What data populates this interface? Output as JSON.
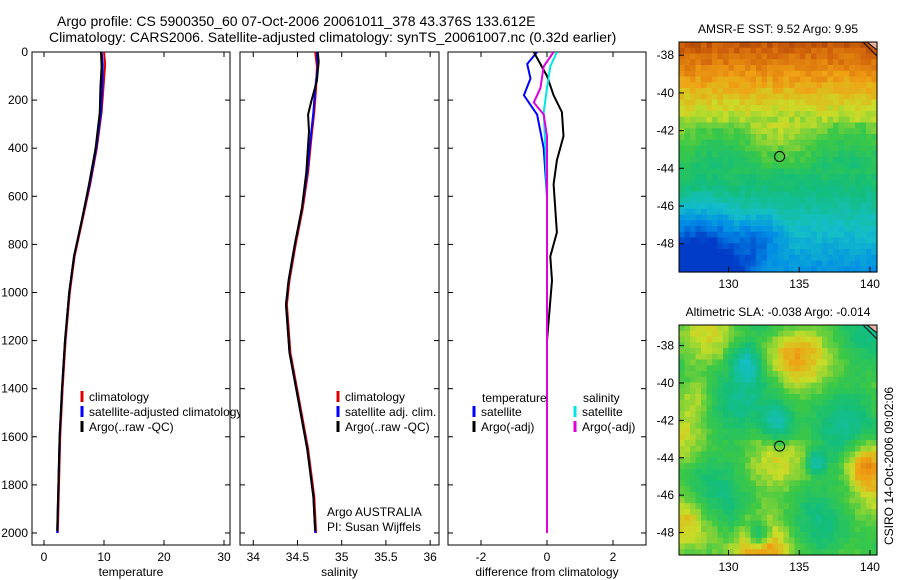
{
  "header": {
    "line1": "Argo profile: CS 5900350_60 07-Oct-2006 20061011_378 43.376S 133.612E",
    "line2": "Climatology: CARS2006. Satellite-adjusted climatology: synTS_20061007.nc (0.32d earlier)"
  },
  "side_label": "CSIRO 14-Oct-2006 09:02:06",
  "colors": {
    "climatology": "#dd0000",
    "satellite": "#0000ff",
    "argo": "#000000",
    "salinity_sat": "#00e5e5",
    "salinity_argo": "#e000e0"
  },
  "chart_data": [
    {
      "id": "temperature",
      "type": "line",
      "xlabel": "temperature",
      "xlim": [
        -2,
        31
      ],
      "xticks": [
        0,
        10,
        20,
        30
      ],
      "ylim": [
        0,
        2050
      ],
      "yticks": [
        0,
        200,
        400,
        600,
        800,
        1000,
        1200,
        1400,
        1600,
        1800,
        2000
      ],
      "invert_y": true,
      "legend_placement": "bottom-right",
      "series": [
        {
          "name": "climatology",
          "color": "#dd0000",
          "x": [
            10.0,
            10.2,
            9.9,
            9.6,
            8.8,
            7.7,
            6.4,
            5.1,
            4.3,
            3.6,
            3.1,
            2.7,
            2.5,
            2.3
          ],
          "depth": [
            0,
            50,
            150,
            250,
            400,
            550,
            700,
            850,
            1000,
            1200,
            1400,
            1600,
            1800,
            2000
          ]
        },
        {
          "name": "satellite-adjusted climatology",
          "color": "#0000ff",
          "x": [
            9.6,
            9.8,
            9.7,
            9.5,
            8.7,
            7.6,
            6.3,
            5.0,
            4.2,
            3.5,
            3.0,
            2.6,
            2.4,
            2.2
          ],
          "depth": [
            0,
            50,
            150,
            250,
            400,
            550,
            700,
            850,
            1000,
            1200,
            1400,
            1600,
            1800,
            2000
          ]
        },
        {
          "name": "Argo(..raw -QC)",
          "color": "#000000",
          "x": [
            9.5,
            9.6,
            9.4,
            9.3,
            8.6,
            7.5,
            6.3,
            5.0,
            4.2,
            3.5,
            3.0,
            2.6,
            2.4,
            2.2
          ],
          "depth": [
            0,
            60,
            150,
            250,
            400,
            550,
            700,
            850,
            1000,
            1200,
            1400,
            1600,
            1800,
            1990
          ]
        }
      ]
    },
    {
      "id": "salinity",
      "type": "line",
      "xlabel": "salinity",
      "xlim": [
        33.85,
        36.1
      ],
      "xticks": [
        34,
        34.5,
        35,
        35.5,
        36
      ],
      "ylim": [
        0,
        2050
      ],
      "invert_y": true,
      "legend_placement": "bottom-right",
      "annotation": [
        "Argo AUSTRALIA",
        "PI: Susan Wijffels"
      ],
      "series": [
        {
          "name": "climatology",
          "color": "#dd0000",
          "x": [
            34.7,
            34.72,
            34.71,
            34.69,
            34.66,
            34.62,
            34.56,
            34.48,
            34.41,
            34.38,
            34.42,
            34.52,
            34.62,
            34.69,
            34.71
          ],
          "depth": [
            0,
            60,
            150,
            250,
            350,
            500,
            650,
            800,
            950,
            1050,
            1250,
            1450,
            1650,
            1850,
            2000
          ]
        },
        {
          "name": "satellite adj. clim.",
          "color": "#0000ff",
          "x": [
            34.72,
            34.73,
            34.7,
            34.68,
            34.65,
            34.61,
            34.55,
            34.47,
            34.4,
            34.37,
            34.41,
            34.51,
            34.61,
            34.68,
            34.7
          ],
          "depth": [
            0,
            60,
            150,
            250,
            350,
            500,
            650,
            800,
            950,
            1050,
            1250,
            1450,
            1650,
            1850,
            2000
          ]
        },
        {
          "name": "Argo(..raw -QC)",
          "color": "#000000",
          "x": [
            34.73,
            34.74,
            34.72,
            34.66,
            34.62,
            34.63,
            34.6,
            34.55,
            34.47,
            34.4,
            34.37,
            34.41,
            34.51,
            34.61,
            34.68,
            34.7
          ],
          "depth": [
            0,
            40,
            120,
            200,
            260,
            330,
            500,
            650,
            800,
            950,
            1050,
            1250,
            1450,
            1650,
            1850,
            1990
          ]
        }
      ]
    },
    {
      "id": "difference",
      "type": "line",
      "xlabel": "difference from climatology",
      "xlim": [
        -3,
        3
      ],
      "xticks": [
        -2,
        0,
        2
      ],
      "ylim": [
        0,
        2050
      ],
      "invert_y": true,
      "legend_placement": "bottom",
      "legend_headers": [
        "temperature",
        "salinity"
      ],
      "series": [
        {
          "name": "satellite",
          "group": "temperature",
          "color": "#0000ff",
          "x": [
            -0.3,
            -0.6,
            -0.5,
            -0.7,
            -0.3,
            -0.1,
            0.0,
            0.0
          ],
          "depth": [
            0,
            50,
            110,
            180,
            260,
            400,
            600,
            2000
          ]
        },
        {
          "name": "Argo(-adj)",
          "group": "temperature",
          "color": "#000000",
          "x": [
            -0.4,
            -0.2,
            0.0,
            0.2,
            0.45,
            0.5,
            0.3,
            0.2,
            0.3,
            0.1,
            0.15,
            0.0,
            0.0
          ],
          "depth": [
            0,
            50,
            100,
            180,
            250,
            350,
            450,
            550,
            750,
            850,
            950,
            1200,
            2000
          ]
        },
        {
          "name": "satellite",
          "group": "salinity",
          "color": "#00e5e5",
          "x": [
            0.3,
            0.1,
            0.0,
            -0.1,
            -0.05,
            0.0,
            0.0
          ],
          "depth": [
            0,
            60,
            150,
            250,
            400,
            600,
            2000
          ]
        },
        {
          "name": "Argo(-adj)",
          "group": "salinity",
          "color": "#e000e0",
          "x": [
            0.2,
            -0.1,
            -0.2,
            -0.4,
            -0.1,
            0.0,
            0.0
          ],
          "depth": [
            0,
            60,
            150,
            210,
            260,
            350,
            2000
          ]
        }
      ]
    },
    {
      "id": "sst_map",
      "type": "heatmap",
      "title": "AMSR-E SST: 9.52 Argo: 9.95",
      "xlim": [
        126.5,
        140.5
      ],
      "ylim": [
        -49.5,
        -37.3
      ],
      "xticks": [
        130,
        135,
        140
      ],
      "yticks": [
        -38,
        -40,
        -42,
        -44,
        -46,
        -48
      ],
      "marker": {
        "lon": 133.612,
        "lat": -43.376
      }
    },
    {
      "id": "sla_map",
      "type": "heatmap",
      "title": "Altimetric SLA: -0.038 Argo: -0.014",
      "xlim": [
        126.5,
        140.5
      ],
      "ylim": [
        -49.2,
        -36.9
      ],
      "xticks": [
        130,
        135,
        140
      ],
      "yticks": [
        -38,
        -40,
        -42,
        -44,
        -46,
        -48
      ],
      "marker": {
        "lon": 133.612,
        "lat": -43.376
      }
    }
  ]
}
